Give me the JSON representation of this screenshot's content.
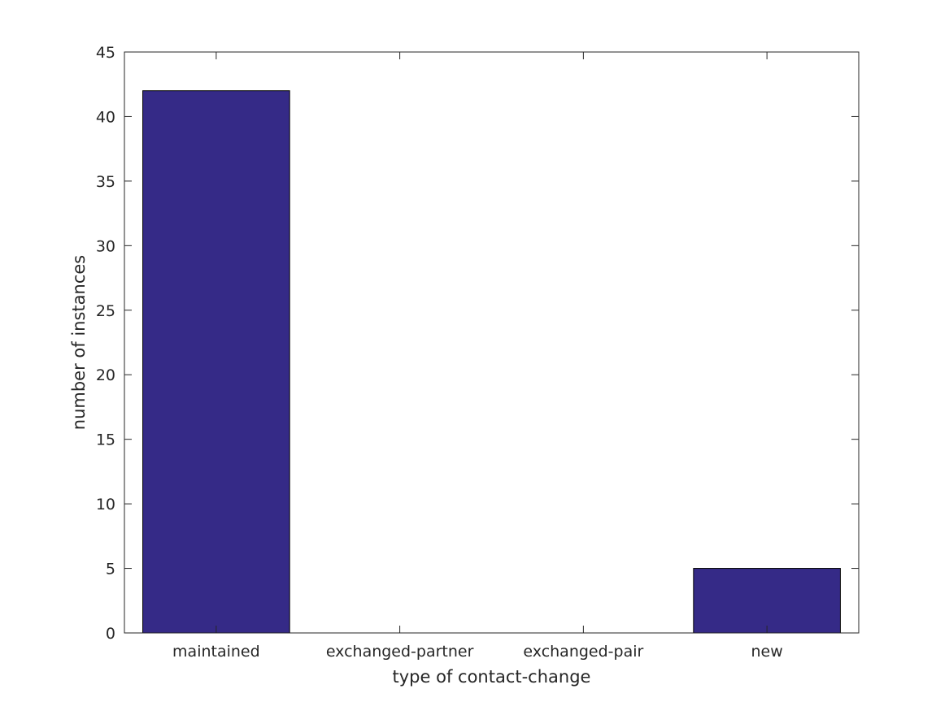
{
  "chart_data": {
    "type": "bar",
    "categories": [
      "maintained",
      "exchanged-partner",
      "exchanged-pair",
      "new"
    ],
    "values": [
      42,
      0,
      0,
      5
    ],
    "xlabel": "type of contact-change",
    "ylabel": "number of instances",
    "ylim": [
      0,
      45
    ],
    "yticks": [
      0,
      5,
      10,
      15,
      20,
      25,
      30,
      35,
      40,
      45
    ],
    "grid": false,
    "bar_color": "#352a87",
    "bar_edge_color": "#000000"
  }
}
